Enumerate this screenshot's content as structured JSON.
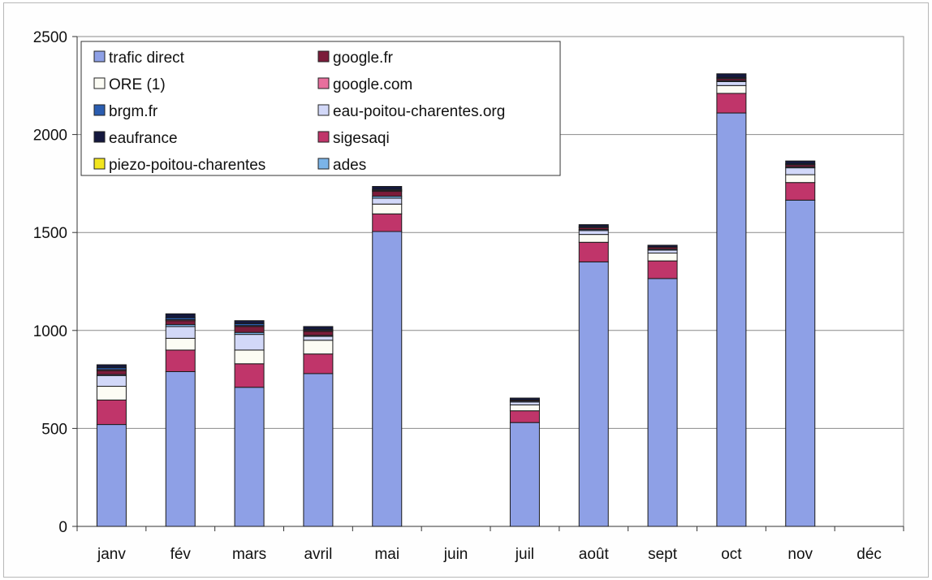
{
  "chart_data": {
    "type": "bar",
    "stacked": true,
    "title": "",
    "xlabel": "",
    "ylabel": "",
    "ylim": [
      0,
      2500
    ],
    "yticks": [
      0,
      500,
      1000,
      1500,
      2000,
      2500
    ],
    "grid": true,
    "legend_position": "top-left",
    "categories": [
      "janv",
      "fév",
      "mars",
      "avril",
      "mai",
      "juin",
      "juil",
      "août",
      "sept",
      "oct",
      "nov",
      "déc"
    ],
    "series": [
      {
        "name": "trafic direct",
        "color": "#8ea0e6",
        "values": [
          520,
          790,
          710,
          780,
          1505,
          0,
          530,
          1350,
          1265,
          2110,
          1665,
          0
        ]
      },
      {
        "name": "sigesaqi",
        "color": "#c0356a",
        "values": [
          125,
          110,
          120,
          100,
          90,
          0,
          60,
          100,
          90,
          100,
          90,
          0
        ]
      },
      {
        "name": "ORE (1)",
        "color": "#fcfcf4",
        "values": [
          70,
          60,
          70,
          70,
          50,
          0,
          30,
          40,
          40,
          40,
          40,
          0
        ]
      },
      {
        "name": "eau-poitou-charentes.org",
        "color": "#d2d8f8",
        "values": [
          55,
          60,
          80,
          20,
          30,
          0,
          15,
          20,
          15,
          20,
          35,
          0
        ]
      },
      {
        "name": "ades",
        "color": "#7bb4e8",
        "values": [
          5,
          10,
          10,
          5,
          10,
          0,
          5,
          5,
          5,
          5,
          5,
          0
        ]
      },
      {
        "name": "google.fr",
        "color": "#7b1c3a",
        "values": [
          20,
          20,
          30,
          20,
          25,
          0,
          5,
          10,
          10,
          10,
          10,
          0
        ]
      },
      {
        "name": "google.com",
        "color": "#e86f9d",
        "values": [
          5,
          5,
          5,
          5,
          5,
          0,
          0,
          0,
          0,
          0,
          0,
          0
        ]
      },
      {
        "name": "brgm.fr",
        "color": "#2a5db0",
        "values": [
          10,
          10,
          10,
          5,
          5,
          0,
          0,
          5,
          0,
          5,
          5,
          0
        ]
      },
      {
        "name": "eaufrance",
        "color": "#14183e",
        "values": [
          15,
          20,
          15,
          15,
          15,
          0,
          10,
          10,
          10,
          20,
          15,
          0
        ]
      },
      {
        "name": "piezo-poitou-charentes",
        "color": "#f2e51e",
        "values": [
          0,
          0,
          0,
          0,
          0,
          0,
          0,
          0,
          0,
          0,
          0,
          0
        ]
      }
    ],
    "legend": [
      {
        "name": "trafic direct",
        "color": "#8ea0e6"
      },
      {
        "name": "google.fr",
        "color": "#7b1c3a"
      },
      {
        "name": "ORE (1)",
        "color": "#fcfcf4"
      },
      {
        "name": "google.com",
        "color": "#e86f9d"
      },
      {
        "name": "brgm.fr",
        "color": "#2a5db0"
      },
      {
        "name": "eau-poitou-charentes.org",
        "color": "#d2d8f8"
      },
      {
        "name": "eaufrance",
        "color": "#14183e"
      },
      {
        "name": "sigesaqi",
        "color": "#c0356a"
      },
      {
        "name": "piezo-poitou-charentes",
        "color": "#f2e51e"
      },
      {
        "name": "ades",
        "color": "#7bb4e8"
      }
    ]
  }
}
